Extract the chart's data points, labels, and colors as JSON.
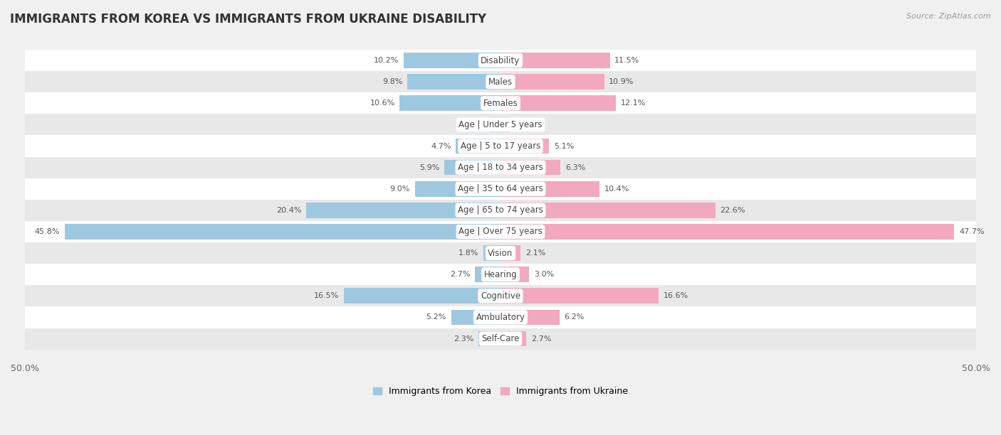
{
  "title": "IMMIGRANTS FROM KOREA VS IMMIGRANTS FROM UKRAINE DISABILITY",
  "source": "Source: ZipAtlas.com",
  "categories": [
    "Disability",
    "Males",
    "Females",
    "Age | Under 5 years",
    "Age | 5 to 17 years",
    "Age | 18 to 34 years",
    "Age | 35 to 64 years",
    "Age | 65 to 74 years",
    "Age | Over 75 years",
    "Vision",
    "Hearing",
    "Cognitive",
    "Ambulatory",
    "Self-Care"
  ],
  "korea_values": [
    10.2,
    9.8,
    10.6,
    1.1,
    4.7,
    5.9,
    9.0,
    20.4,
    45.8,
    1.8,
    2.7,
    16.5,
    5.2,
    2.3
  ],
  "ukraine_values": [
    11.5,
    10.9,
    12.1,
    1.0,
    5.1,
    6.3,
    10.4,
    22.6,
    47.7,
    2.1,
    3.0,
    16.6,
    6.2,
    2.7
  ],
  "korea_color": "#9ec8e0",
  "ukraine_color": "#f2a8be",
  "korea_label": "Immigrants from Korea",
  "ukraine_label": "Immigrants from Ukraine",
  "max_val": 50.0,
  "bg_color": "#f0f0f0",
  "row_color_odd": "#ffffff",
  "row_color_even": "#e8e8e8",
  "title_fontsize": 12,
  "label_fontsize": 8.5,
  "value_fontsize": 8,
  "axis_label_fontsize": 9
}
